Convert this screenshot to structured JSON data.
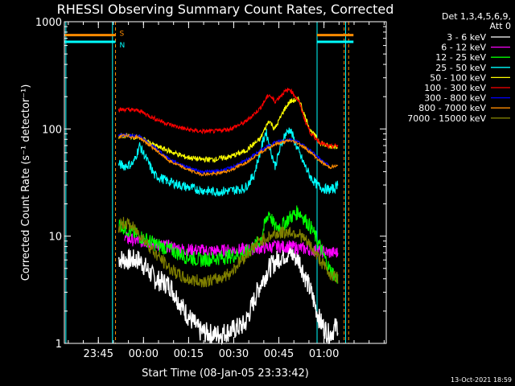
{
  "chart_data": {
    "type": "line",
    "title": "RHESSI Observing Summary Count Rates, Corrected",
    "xlabel": "Start Time (08-Jan-05 23:33:42)",
    "ylabel": "Corrected Count Rate (s⁻¹ detector⁻¹)",
    "yscale": "log",
    "ylim": [
      1,
      1000
    ],
    "xlim_minutes": [
      0,
      107
    ],
    "x_unit": "minutes after 08-Jan-05 23:33:42",
    "x_ticks": [
      {
        "minute": 11.3,
        "label": "23:45"
      },
      {
        "minute": 26.3,
        "label": "00:00"
      },
      {
        "minute": 41.3,
        "label": "00:15"
      },
      {
        "minute": 56.3,
        "label": "00:30"
      },
      {
        "minute": 71.3,
        "label": "00:45"
      },
      {
        "minute": 86.3,
        "label": "01:00"
      }
    ],
    "y_ticks": [
      {
        "value": 1,
        "label": "1"
      },
      {
        "value": 10,
        "label": "10"
      },
      {
        "value": 100,
        "label": "100"
      },
      {
        "value": 1000,
        "label": "1000"
      }
    ],
    "legend_header": [
      "Det 1,3,4,5,6,9,",
      "Att 0"
    ],
    "legend_position": "right",
    "series": [
      {
        "name": "3 - 6 keV",
        "color": "#ffffff",
        "x": [
          18,
          20,
          25,
          30,
          35,
          38,
          40,
          45,
          50,
          55,
          60,
          65,
          68,
          72,
          75,
          78,
          82,
          85,
          88,
          91
        ],
        "y": [
          6.2,
          6,
          6,
          4,
          3.5,
          2.5,
          2,
          1.3,
          1.2,
          1.3,
          1.5,
          3.5,
          5,
          6.5,
          7,
          6,
          3,
          1.6,
          1.2,
          1.5
        ]
      },
      {
        "name": "6 - 12 keV",
        "color": "#ff00ff",
        "x": [
          20,
          30,
          40,
          50,
          60,
          70,
          75,
          80,
          85,
          88,
          91
        ],
        "y": [
          9.5,
          8.5,
          7.5,
          7.3,
          7.5,
          8,
          8,
          7.6,
          7.3,
          7,
          7
        ]
      },
      {
        "name": "12 - 25 keV",
        "color": "#00ff00",
        "x": [
          18,
          22,
          25,
          30,
          35,
          40,
          45,
          50,
          55,
          60,
          65,
          68,
          70,
          73,
          75,
          78,
          82,
          85,
          88,
          91
        ],
        "y": [
          13,
          11,
          10,
          8.5,
          7.5,
          6.5,
          6,
          6.2,
          6.5,
          6.8,
          9,
          17,
          12,
          13,
          15,
          17,
          12,
          8,
          5,
          4
        ]
      },
      {
        "name": "25 - 50 keV",
        "color": "#00ffff",
        "x": [
          18,
          20,
          23,
          25,
          30,
          35,
          40,
          45,
          50,
          55,
          60,
          63,
          65,
          67,
          70,
          73,
          75,
          78,
          80,
          82,
          84,
          86,
          88,
          90,
          91
        ],
        "y": [
          47,
          45,
          48,
          70,
          37,
          32,
          29,
          27,
          26,
          26.5,
          28,
          37,
          60,
          95,
          45,
          85,
          100,
          60,
          45,
          35,
          30,
          28,
          27,
          28,
          32
        ]
      },
      {
        "name": "50 - 100 keV",
        "color": "#ffff00",
        "x": [
          18,
          20,
          25,
          30,
          35,
          40,
          45,
          50,
          55,
          60,
          65,
          68,
          70,
          73,
          75,
          78,
          80,
          82,
          85,
          88,
          91
        ],
        "y": [
          85,
          87,
          83,
          70,
          62,
          55,
          52,
          52,
          55,
          62,
          80,
          120,
          100,
          150,
          180,
          190,
          130,
          95,
          75,
          68,
          70
        ]
      },
      {
        "name": "100 - 300 keV",
        "color": "#ff0000",
        "x": [
          18,
          20,
          25,
          30,
          35,
          40,
          45,
          50,
          55,
          60,
          65,
          68,
          70,
          73,
          75,
          78,
          80,
          82,
          85,
          88,
          91
        ],
        "y": [
          150,
          152,
          148,
          125,
          110,
          100,
          95,
          95,
          100,
          115,
          155,
          210,
          180,
          220,
          235,
          180,
          120,
          90,
          75,
          68,
          70
        ]
      },
      {
        "name": "300 - 800 keV",
        "color": "#0000ff",
        "x": [
          18,
          20,
          25,
          30,
          35,
          40,
          45,
          50,
          55,
          60,
          65,
          70,
          75,
          78,
          82,
          85,
          88
        ],
        "y": [
          87,
          88,
          85,
          67,
          52,
          45,
          40,
          40,
          43,
          50,
          62,
          75,
          80,
          75,
          62,
          52,
          45
        ]
      },
      {
        "name": "800 - 7000 keV",
        "color": "#ff8c00",
        "x": [
          18,
          20,
          25,
          30,
          35,
          40,
          45,
          50,
          55,
          60,
          65,
          70,
          75,
          78,
          82,
          85,
          88,
          91
        ],
        "y": [
          85,
          86,
          83,
          65,
          50,
          43,
          38,
          38,
          41,
          48,
          60,
          72,
          78,
          73,
          60,
          50,
          44,
          45
        ]
      },
      {
        "name": "7000 - 15000 keV",
        "color": "#808000",
        "x": [
          18,
          20,
          22,
          25,
          30,
          35,
          40,
          45,
          50,
          55,
          60,
          65,
          70,
          75,
          78,
          82,
          85,
          88,
          91
        ],
        "y": [
          12,
          13.5,
          12.5,
          10.5,
          7,
          5,
          4,
          3.8,
          3.9,
          4.5,
          6.5,
          9,
          10.5,
          11,
          10.5,
          8,
          6,
          4.5,
          4
        ]
      }
    ],
    "state_bars": [
      {
        "label": "S",
        "color": "#ff8c00",
        "value": 750
      },
      {
        "label": "N",
        "color": "#00ffff",
        "value": 650
      }
    ],
    "markers_cyan": [
      0.5,
      16,
      84,
      93.5
    ],
    "markers_orange_dashed": [
      17,
      93,
      94.5
    ],
    "footer": "13-Oct-2021 18:59"
  }
}
